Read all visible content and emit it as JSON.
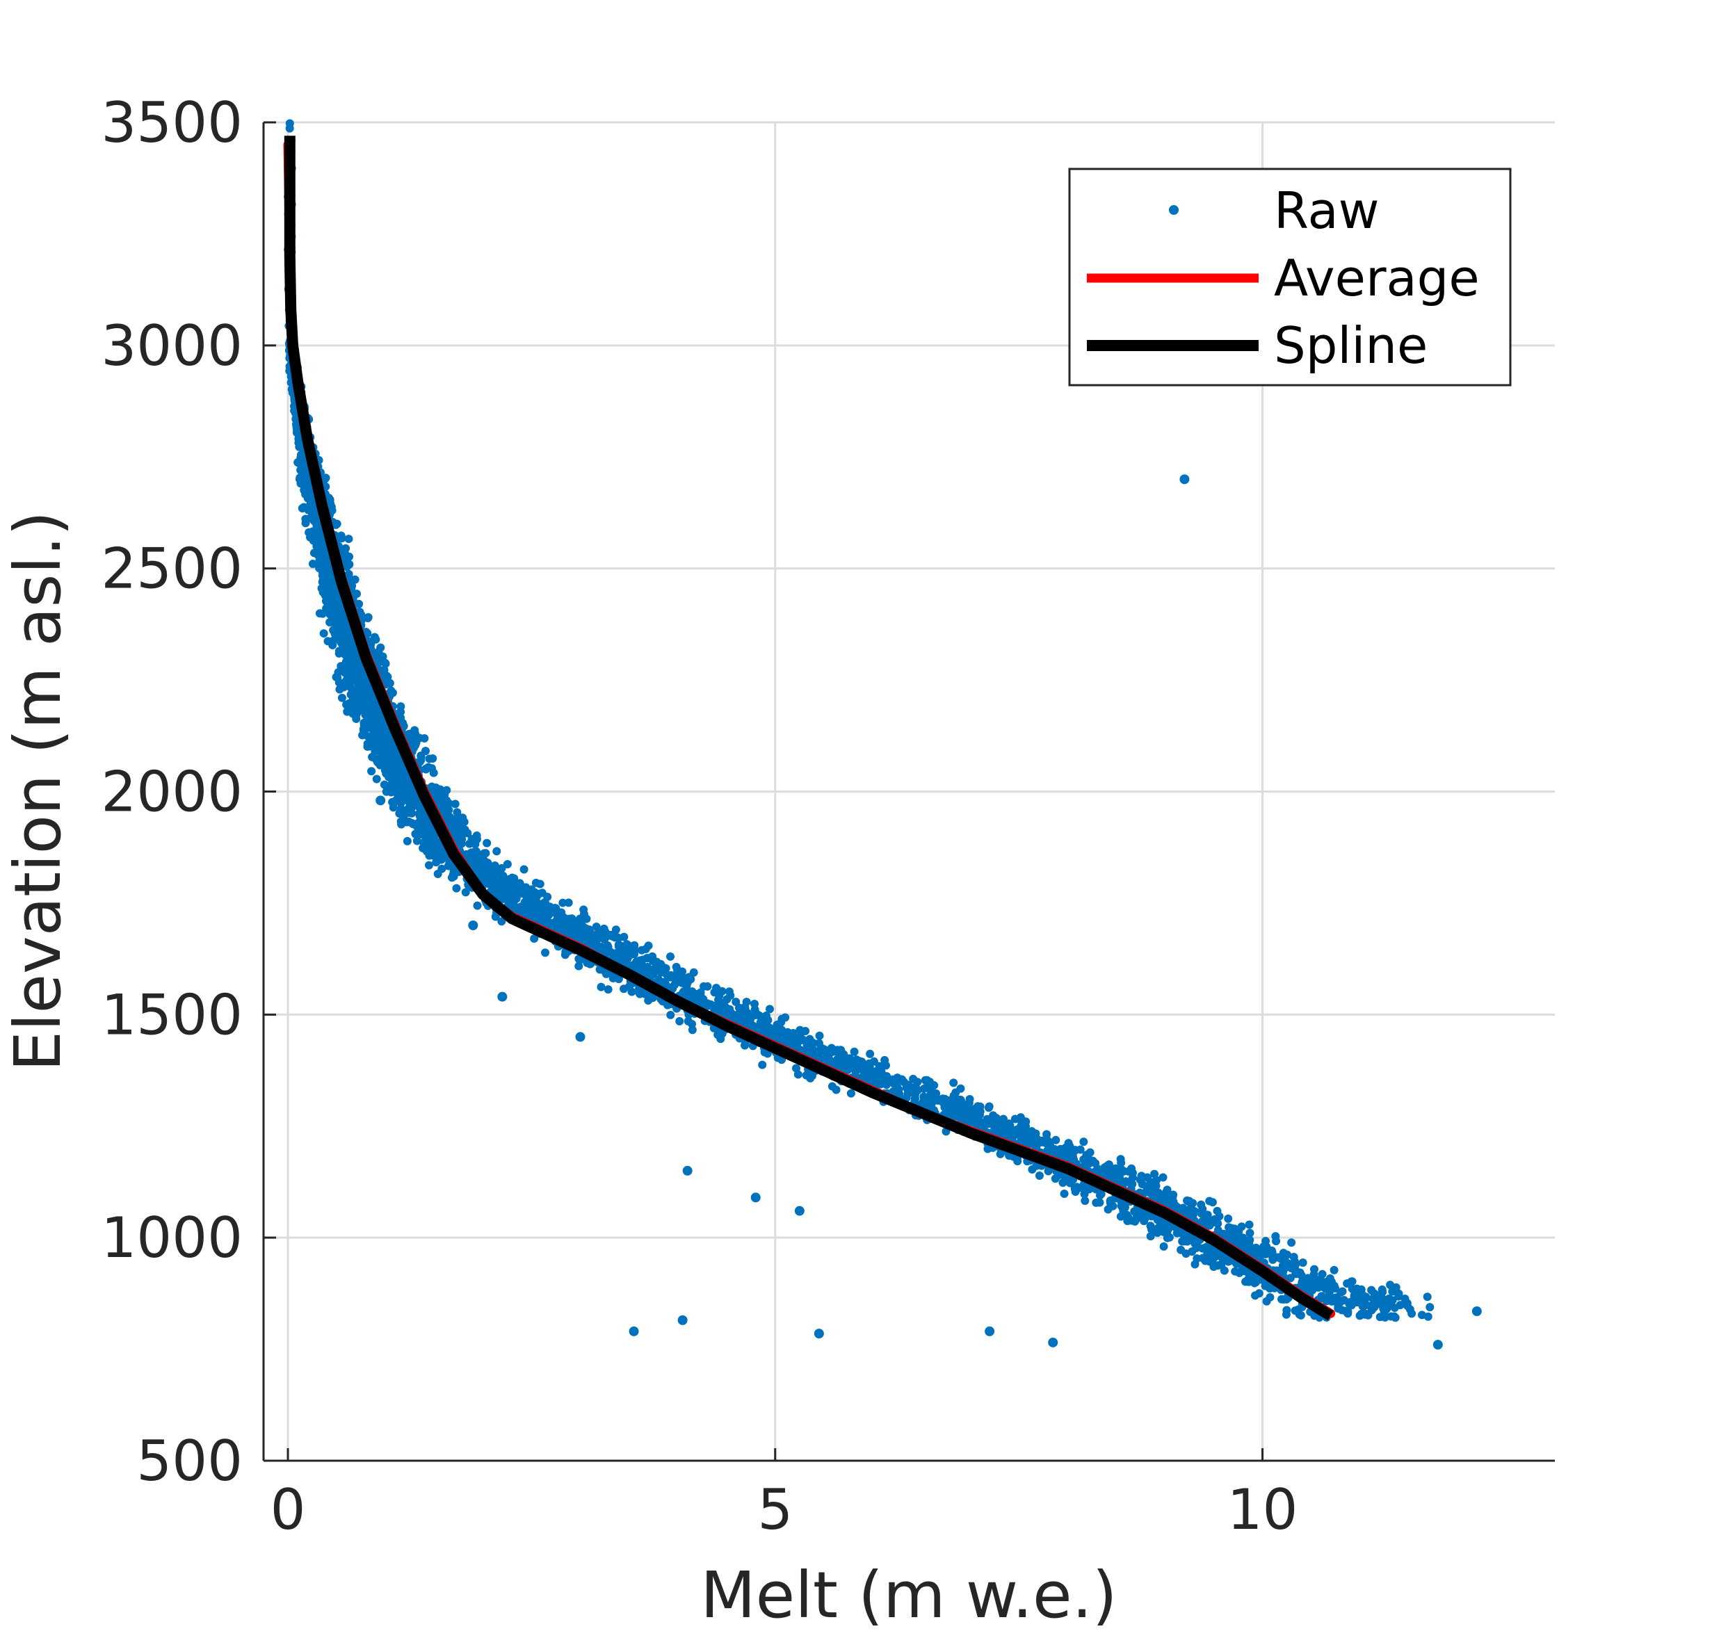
{
  "chart_data": {
    "type": "scatter",
    "xlabel": "Melt (m w.e.)",
    "ylabel": "Elevation (m asl.)",
    "xlim": [
      -0.25,
      13
    ],
    "ylim": [
      500,
      3500
    ],
    "xticks": [
      0,
      5,
      10
    ],
    "yticks": [
      500,
      1000,
      1500,
      2000,
      2500,
      3000,
      3500
    ],
    "grid": true,
    "legend_position": "top-right",
    "colors": {
      "raw": "#0072BD",
      "average": "#FF0000",
      "spline": "#000000",
      "axis": "#262626",
      "grid": "#DCDCDC"
    },
    "legend": [
      "Raw",
      "Average",
      "Spline"
    ],
    "series": [
      {
        "name": "Average",
        "type": "line",
        "x": [
          0.0,
          0.03,
          0.1,
          0.2,
          0.35,
          0.55,
          0.8,
          1.1,
          1.4,
          1.7,
          2.0,
          2.3,
          2.6,
          3.0,
          3.5,
          4.0,
          4.5,
          5.0,
          5.5,
          6.0,
          6.5,
          7.0,
          7.5,
          8.0,
          8.5,
          9.0,
          9.5,
          10.0,
          10.4,
          10.7
        ],
        "y": [
          3450,
          3050,
          2930,
          2800,
          2650,
          2480,
          2310,
          2150,
          2000,
          1870,
          1770,
          1720,
          1690,
          1650,
          1590,
          1530,
          1480,
          1430,
          1380,
          1330,
          1280,
          1240,
          1200,
          1160,
          1110,
          1060,
          1000,
          930,
          870,
          830
        ]
      },
      {
        "name": "Spline",
        "type": "line",
        "x": [
          0.02,
          0.02,
          0.03,
          0.05,
          0.1,
          0.2,
          0.35,
          0.55,
          0.8,
          1.1,
          1.4,
          1.7,
          2.0,
          2.3,
          2.6,
          3.0,
          3.5,
          4.0,
          4.5,
          5.0,
          5.5,
          6.0,
          6.5,
          7.0,
          7.5,
          8.0,
          8.5,
          9.0,
          9.5,
          10.0,
          10.4,
          10.7
        ],
        "y": [
          3470,
          3200,
          3080,
          3000,
          2920,
          2790,
          2640,
          2470,
          2300,
          2140,
          1990,
          1860,
          1770,
          1715,
          1685,
          1645,
          1590,
          1530,
          1475,
          1425,
          1375,
          1325,
          1280,
          1235,
          1195,
          1155,
          1105,
          1055,
          995,
          925,
          865,
          825
        ]
      }
    ],
    "raw_band": {
      "description": "",
      "y": [
        3000,
        2800,
        2600,
        2400,
        2200,
        2000,
        1850,
        1750,
        1650,
        1550,
        1450,
        1350,
        1250,
        1150,
        1050,
        950,
        850
      ],
      "x_low": [
        0.0,
        0.05,
        0.15,
        0.3,
        0.5,
        0.9,
        1.3,
        1.9,
        2.6,
        3.3,
        4.3,
        5.3,
        6.6,
        7.5,
        8.4,
        9.1,
        9.9
      ],
      "x_high": [
        0.05,
        0.25,
        0.55,
        0.85,
        1.2,
        1.7,
        2.2,
        2.9,
        3.8,
        4.6,
        5.7,
        6.8,
        7.9,
        8.9,
        9.8,
        10.6,
        12.0
      ]
    },
    "raw_outliers": [
      {
        "x": 9.2,
        "y": 2700
      },
      {
        "x": 3.55,
        "y": 790
      },
      {
        "x": 4.05,
        "y": 815
      },
      {
        "x": 5.45,
        "y": 785
      },
      {
        "x": 4.1,
        "y": 1150
      },
      {
        "x": 4.8,
        "y": 1090
      },
      {
        "x": 5.25,
        "y": 1060
      },
      {
        "x": 7.85,
        "y": 765
      },
      {
        "x": 7.2,
        "y": 790
      },
      {
        "x": 11.8,
        "y": 760
      },
      {
        "x": 12.2,
        "y": 835
      },
      {
        "x": 3.0,
        "y": 1450
      },
      {
        "x": 2.2,
        "y": 1540
      },
      {
        "x": 1.9,
        "y": 1700
      },
      {
        "x": 0.95,
        "y": 1980
      }
    ]
  }
}
